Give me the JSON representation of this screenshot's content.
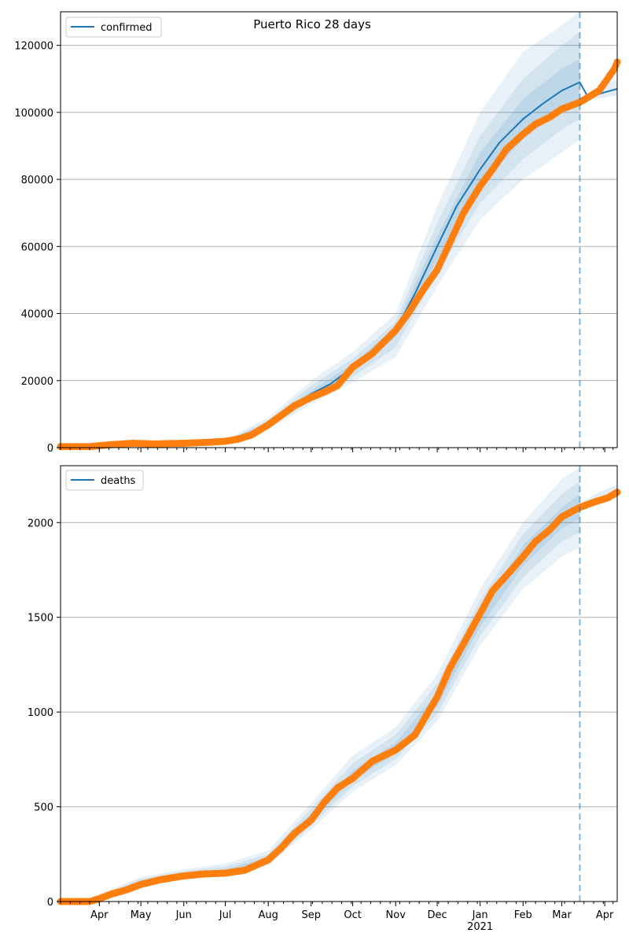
{
  "title": "Puerto Rico 28 days",
  "colors": {
    "model_line": "#1f77b4",
    "band": "#1f77b4",
    "observed": "#ff7f0e",
    "grid": "#b0b0b0",
    "forecast_marker": "#1f77b4"
  },
  "x_axis": {
    "month_labels": [
      "Apr",
      "May",
      "Jun",
      "Jul",
      "Aug",
      "Sep",
      "Oct",
      "Nov",
      "Dec",
      "Jan",
      "Feb",
      "Mar",
      "Apr"
    ],
    "month_dates": [
      "2020-04-01",
      "2020-05-01",
      "2020-06-01",
      "2020-07-01",
      "2020-08-01",
      "2020-09-01",
      "2020-10-01",
      "2020-11-01",
      "2020-12-01",
      "2021-01-01",
      "2021-02-01",
      "2021-03-01",
      "2021-04-01"
    ],
    "year_label": "2021",
    "year_label_date": "2021-01-01",
    "range": [
      "2020-03-04",
      "2021-04-10"
    ]
  },
  "chart_data": [
    {
      "type": "line",
      "panel": "top",
      "legend": "confirmed",
      "legend_position": "top-left",
      "ylim": [
        0,
        130000
      ],
      "yticks": [
        0,
        20000,
        40000,
        60000,
        80000,
        100000,
        120000
      ],
      "grid": "horizontal",
      "forecast_start": "2021-03-14",
      "model": {
        "name": "confirmed",
        "x": [
          "2020-03-04",
          "2020-04-01",
          "2020-05-01",
          "2020-06-01",
          "2020-07-01",
          "2020-07-15",
          "2020-08-01",
          "2020-08-15",
          "2020-09-01",
          "2020-09-15",
          "2020-10-01",
          "2020-10-15",
          "2020-11-01",
          "2020-11-15",
          "2020-12-01",
          "2020-12-15",
          "2021-01-01",
          "2021-01-15",
          "2021-02-01",
          "2021-02-15",
          "2021-03-01",
          "2021-03-14",
          "2021-03-20",
          "2021-04-01",
          "2021-04-10"
        ],
        "y": [
          0,
          300,
          900,
          1200,
          1800,
          3000,
          7000,
          11500,
          16000,
          19000,
          24000,
          28000,
          35000,
          46000,
          60000,
          72000,
          83000,
          91000,
          98000,
          102500,
          106500,
          109000,
          104500,
          106000,
          107000
        ]
      },
      "bands": [
        {
          "level": "outer",
          "x": [
            "2020-07-01",
            "2020-08-01",
            "2020-09-01",
            "2020-10-01",
            "2020-11-01",
            "2020-12-01",
            "2021-01-01",
            "2021-02-01",
            "2021-03-01",
            "2021-03-14"
          ],
          "lower": [
            1500,
            5500,
            13000,
            19500,
            27000,
            48000,
            68000,
            80000,
            88000,
            92000
          ],
          "upper": [
            2200,
            9000,
            20000,
            28500,
            40000,
            72000,
            100000,
            118000,
            126000,
            130000
          ]
        },
        {
          "level": "middle",
          "x": [
            "2020-07-01",
            "2020-08-01",
            "2020-09-01",
            "2020-10-01",
            "2020-11-01",
            "2020-12-01",
            "2021-01-01",
            "2021-02-01",
            "2021-03-01",
            "2021-03-14"
          ],
          "lower": [
            1600,
            6000,
            14000,
            21000,
            30000,
            52000,
            73000,
            86000,
            95000,
            98000
          ],
          "upper": [
            2000,
            8200,
            18500,
            26500,
            37500,
            67000,
            93000,
            110000,
            120000,
            124000
          ]
        },
        {
          "level": "inner",
          "x": [
            "2020-07-01",
            "2020-08-01",
            "2020-09-01",
            "2020-10-01",
            "2020-11-01",
            "2020-12-01",
            "2021-01-01",
            "2021-02-01",
            "2021-03-01",
            "2021-03-14"
          ],
          "lower": [
            1700,
            6500,
            15000,
            22500,
            33000,
            56000,
            78000,
            92000,
            101000,
            104000
          ],
          "upper": [
            1900,
            7500,
            17000,
            25000,
            36000,
            63000,
            88000,
            104000,
            113000,
            116000
          ]
        },
        {
          "level": "forecast",
          "x": [
            "2021-03-14",
            "2021-03-25",
            "2021-04-10"
          ],
          "lower": [
            103000,
            104000,
            105000
          ],
          "upper": [
            104000,
            106500,
            110000
          ]
        }
      ],
      "observed": {
        "name": "observed",
        "x": [
          "2020-03-04",
          "2020-03-25",
          "2020-04-10",
          "2020-04-25",
          "2020-05-10",
          "2020-06-01",
          "2020-06-20",
          "2020-07-01",
          "2020-07-10",
          "2020-07-20",
          "2020-08-01",
          "2020-08-10",
          "2020-08-20",
          "2020-09-01",
          "2020-09-10",
          "2020-09-20",
          "2020-10-01",
          "2020-10-15",
          "2020-11-01",
          "2020-11-10",
          "2020-11-20",
          "2020-12-01",
          "2020-12-10",
          "2020-12-20",
          "2021-01-01",
          "2021-01-10",
          "2021-01-20",
          "2021-02-01",
          "2021-02-10",
          "2021-02-20",
          "2021-03-01",
          "2021-03-14",
          "2021-03-20",
          "2021-03-28",
          "2021-04-03",
          "2021-04-08",
          "2021-04-10"
        ],
        "y": [
          300,
          300,
          900,
          1300,
          1100,
          1300,
          1600,
          1900,
          2500,
          3800,
          6800,
          9500,
          12500,
          15000,
          16500,
          18500,
          24000,
          28000,
          35000,
          40000,
          46500,
          53000,
          61000,
          70000,
          78000,
          83000,
          89000,
          93500,
          96500,
          98500,
          101000,
          103000,
          104500,
          106500,
          110000,
          113000,
          115000
        ]
      }
    },
    {
      "type": "line",
      "panel": "bottom",
      "legend": "deaths",
      "legend_position": "top-left",
      "ylim": [
        0,
        2300
      ],
      "yticks": [
        0,
        500,
        1000,
        1500,
        2000
      ],
      "grid": "horizontal",
      "forecast_start": "2021-03-14",
      "bands": [
        {
          "level": "outer",
          "x": [
            "2020-04-01",
            "2020-05-01",
            "2020-06-01",
            "2020-07-01",
            "2020-08-01",
            "2020-09-01",
            "2020-10-01",
            "2020-11-01",
            "2020-12-01",
            "2021-01-01",
            "2021-02-01",
            "2021-03-01",
            "2021-03-14"
          ],
          "lower": [
            0,
            80,
            120,
            140,
            190,
            380,
            580,
            720,
            950,
            1350,
            1650,
            1820,
            1870
          ],
          "upper": [
            40,
            130,
            170,
            200,
            270,
            520,
            770,
            920,
            1200,
            1650,
            2000,
            2230,
            2290
          ]
        },
        {
          "level": "middle",
          "x": [
            "2020-04-01",
            "2020-05-01",
            "2020-06-01",
            "2020-07-01",
            "2020-08-01",
            "2020-09-01",
            "2020-10-01",
            "2020-11-01",
            "2020-12-01",
            "2021-01-01",
            "2021-02-01",
            "2021-03-01",
            "2021-03-14"
          ],
          "lower": [
            5,
            90,
            130,
            145,
            200,
            400,
            610,
            750,
            990,
            1400,
            1710,
            1900,
            1950
          ],
          "upper": [
            30,
            120,
            160,
            185,
            250,
            490,
            730,
            880,
            1150,
            1590,
            1940,
            2150,
            2220
          ]
        },
        {
          "level": "inner",
          "x": [
            "2020-04-01",
            "2020-05-01",
            "2020-06-01",
            "2020-07-01",
            "2020-08-01",
            "2020-09-01",
            "2020-10-01",
            "2020-11-01",
            "2020-12-01",
            "2021-01-01",
            "2021-02-01",
            "2021-03-01",
            "2021-03-14"
          ],
          "lower": [
            10,
            95,
            135,
            150,
            210,
            420,
            640,
            780,
            1030,
            1450,
            1770,
            1970,
            2020
          ],
          "upper": [
            25,
            110,
            150,
            170,
            235,
            465,
            690,
            840,
            1100,
            1530,
            1880,
            2080,
            2150
          ]
        },
        {
          "level": "forecast",
          "x": [
            "2021-03-14",
            "2021-03-25",
            "2021-04-10"
          ],
          "lower": [
            2070,
            2090,
            2130
          ],
          "upper": [
            2100,
            2150,
            2200
          ]
        }
      ],
      "observed": {
        "name": "observed",
        "x": [
          "2020-03-04",
          "2020-03-25",
          "2020-04-01",
          "2020-04-10",
          "2020-04-20",
          "2020-05-01",
          "2020-05-15",
          "2020-06-01",
          "2020-06-15",
          "2020-07-01",
          "2020-07-15",
          "2020-08-01",
          "2020-08-10",
          "2020-08-20",
          "2020-09-01",
          "2020-09-10",
          "2020-09-20",
          "2020-10-01",
          "2020-10-15",
          "2020-11-01",
          "2020-11-15",
          "2020-12-01",
          "2020-12-10",
          "2020-12-20",
          "2021-01-01",
          "2021-01-10",
          "2021-01-20",
          "2021-02-01",
          "2021-02-10",
          "2021-02-20",
          "2021-03-01",
          "2021-03-14",
          "2021-03-25",
          "2021-04-03",
          "2021-04-10"
        ],
        "y": [
          0,
          0,
          15,
          40,
          60,
          90,
          115,
          135,
          145,
          150,
          165,
          220,
          280,
          360,
          430,
          520,
          600,
          650,
          740,
          800,
          880,
          1080,
          1230,
          1360,
          1520,
          1640,
          1720,
          1820,
          1900,
          1960,
          2030,
          2080,
          2110,
          2130,
          2160
        ]
      }
    }
  ]
}
